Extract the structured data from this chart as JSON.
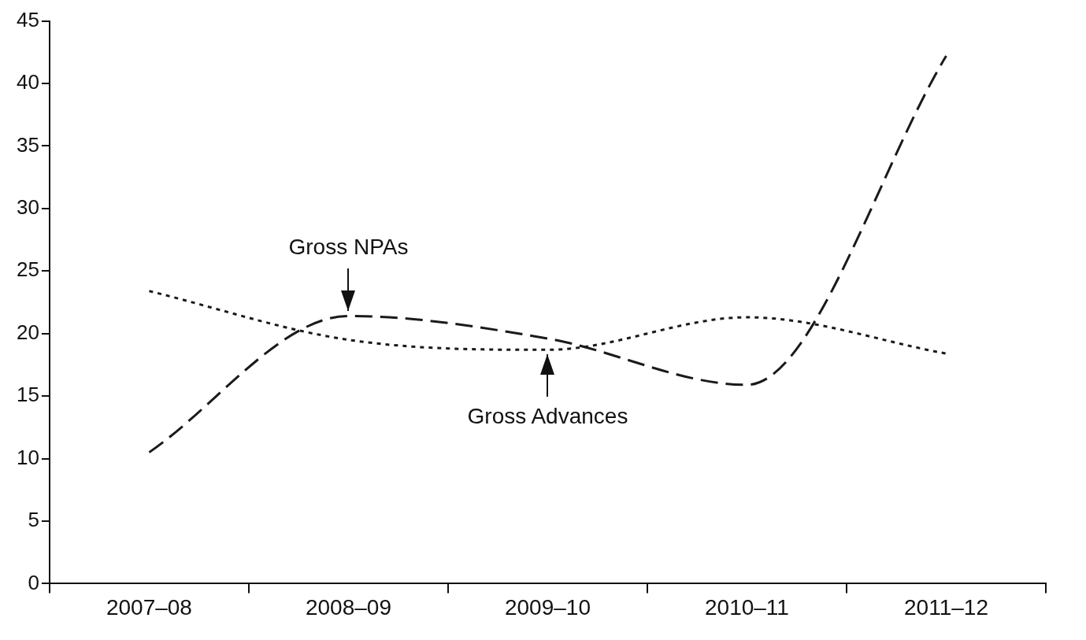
{
  "chart_data": {
    "type": "line",
    "categories": [
      "2007–08",
      "2008–09",
      "2009–10",
      "2010–11",
      "2011–12"
    ],
    "series": [
      {
        "color": "#1a1a1a",
        "line_style": "dashed",
        "values": [
          10.5,
          21.4,
          19.6,
          15.9,
          42.2
        ]
      },
      {
        "color": "#1a1a1a",
        "line_style": "dotted",
        "values": [
          23.4,
          19.5,
          18.7,
          21.3,
          18.4
        ]
      }
    ],
    "ylim": [
      0,
      45
    ],
    "yticks": [
      0,
      5,
      10,
      15,
      20,
      25,
      30,
      35,
      40,
      45
    ],
    "grid": false,
    "legend": false,
    "marker": "none",
    "annotations": [
      {
        "text": "Gross NPAs",
        "x": "2008–09",
        "y": 21.4
      },
      {
        "text": "Gross Advances",
        "x": "2009–10",
        "y": 18.7
      }
    ]
  }
}
